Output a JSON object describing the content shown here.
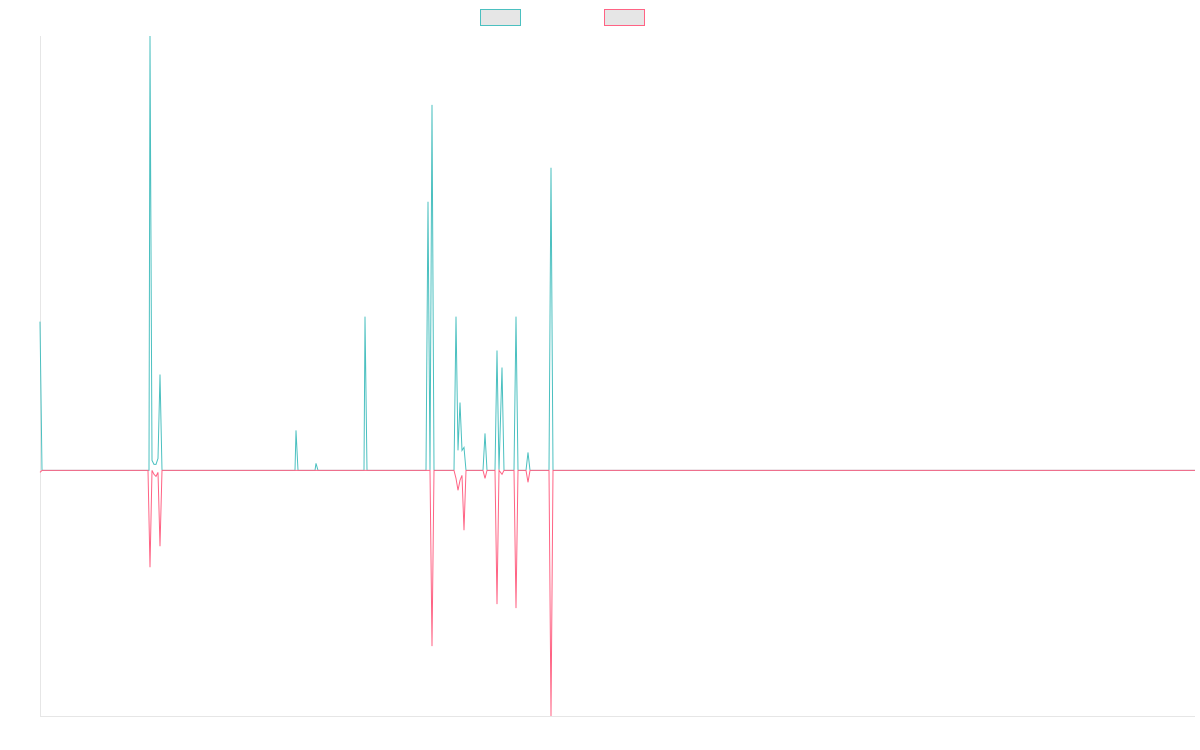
{
  "chart_data": {
    "type": "line",
    "title": "",
    "xlabel": "",
    "ylabel": "",
    "x": [
      0,
      1,
      2,
      3,
      4,
      5,
      6,
      7,
      8,
      9,
      10,
      11,
      12,
      13,
      14,
      15,
      16,
      17,
      18,
      19,
      20,
      21,
      22,
      23,
      24,
      25,
      26,
      27,
      28,
      29,
      30,
      31,
      32,
      33,
      34,
      35,
      36,
      37,
      38,
      39,
      40,
      41,
      42,
      43,
      44,
      45,
      46,
      47,
      48,
      49,
      50,
      51,
      52,
      53,
      54,
      55,
      56,
      57,
      58,
      59,
      60,
      61,
      62,
      63,
      64,
      65,
      66,
      67,
      68,
      69,
      70,
      71,
      72,
      73,
      74,
      75,
      76,
      77,
      78,
      79,
      80,
      81,
      82,
      83,
      84,
      85,
      86,
      87,
      88,
      89,
      90,
      91,
      92,
      93,
      94,
      95,
      96,
      97,
      98,
      99,
      100,
      101,
      102,
      103,
      104,
      105,
      106,
      107,
      108,
      109,
      110,
      111,
      112,
      113,
      114,
      115,
      116,
      117,
      118,
      119,
      120,
      121,
      122,
      123,
      124,
      125,
      126,
      127,
      128,
      129,
      130,
      131,
      132,
      133,
      134,
      135,
      136,
      137,
      138,
      139,
      140,
      141,
      142,
      143,
      144,
      145,
      146,
      147,
      148,
      149,
      150,
      151,
      152,
      153,
      154,
      155,
      156,
      157,
      158,
      159,
      160,
      161,
      162,
      163,
      164,
      165,
      166,
      167,
      168,
      169,
      170,
      171,
      172,
      173,
      174,
      175,
      176,
      177,
      178,
      179,
      180,
      181,
      182,
      183,
      184,
      185,
      186,
      187,
      188,
      189,
      190,
      191,
      192,
      193,
      194,
      195,
      196,
      197,
      198,
      199,
      200,
      201,
      202,
      203,
      204,
      205,
      206,
      207,
      208,
      209,
      210,
      211,
      212,
      213,
      214,
      215,
      216,
      217,
      218,
      219,
      220,
      221,
      222,
      223,
      224,
      225,
      226,
      227,
      228,
      229,
      230,
      231,
      232,
      233,
      234,
      235,
      236,
      237,
      238,
      239,
      240,
      241,
      242,
      243,
      244,
      245,
      246,
      247,
      248,
      249,
      250,
      251,
      252,
      253,
      254,
      255,
      256,
      257,
      258,
      259,
      260,
      261,
      262,
      263,
      264,
      265,
      266,
      267,
      268,
      269,
      270,
      271,
      272,
      273,
      274,
      275,
      276,
      277,
      278,
      279,
      280,
      281,
      282,
      283,
      284,
      285,
      286,
      287,
      288,
      289,
      290,
      291,
      292,
      293,
      294,
      295,
      296,
      297,
      298,
      299,
      300,
      301,
      302,
      303,
      304,
      305,
      306,
      307,
      308,
      309,
      310,
      311,
      312,
      313,
      314,
      315,
      316,
      317,
      318,
      319,
      320,
      321,
      322,
      323,
      324,
      325,
      326,
      327,
      328,
      329,
      330,
      331,
      332,
      333,
      334,
      335,
      336,
      337,
      338,
      339,
      340,
      341,
      342,
      343,
      344,
      345,
      346,
      347,
      348,
      349,
      350,
      351,
      352,
      353,
      354,
      355,
      356,
      357,
      358,
      359,
      360,
      361,
      362,
      363,
      364,
      365,
      366,
      367,
      368,
      369,
      370,
      371,
      372,
      373,
      374,
      375,
      376,
      377,
      378,
      379,
      380,
      381,
      382,
      383,
      384,
      385,
      386,
      387,
      388,
      389,
      390,
      391,
      392,
      393,
      394,
      395,
      396,
      397,
      398,
      399,
      400,
      401,
      402,
      403,
      404,
      405,
      406,
      407,
      408,
      409,
      410,
      411,
      412,
      413,
      414,
      415,
      416,
      417,
      418,
      419,
      420,
      421,
      422,
      423,
      424,
      425,
      426,
      427,
      428,
      429,
      430,
      431,
      432,
      433,
      434,
      435,
      436,
      437,
      438,
      439,
      440,
      441,
      442,
      443,
      444,
      445,
      446,
      447,
      448,
      449,
      450,
      451,
      452,
      453,
      454,
      455,
      456,
      457,
      458,
      459,
      460,
      461,
      462,
      463,
      464,
      465,
      466,
      467,
      468,
      469,
      470,
      471,
      472,
      473,
      474,
      475,
      476,
      477,
      478,
      479,
      480,
      481,
      482,
      483,
      484,
      485,
      486,
      487,
      488,
      489,
      490,
      491,
      492,
      493,
      494,
      495,
      496,
      497,
      498,
      499,
      500,
      501,
      502,
      503,
      504,
      505,
      506,
      507,
      508,
      509,
      510,
      511,
      512,
      513,
      514,
      515,
      516,
      517,
      518,
      519,
      520,
      521,
      522,
      523,
      524,
      525,
      526,
      527,
      528,
      529,
      530,
      531,
      532,
      533,
      534,
      535,
      536,
      537,
      538,
      539,
      540,
      541,
      542,
      543,
      544,
      545,
      546,
      547,
      548,
      549,
      550,
      551,
      552,
      553,
      554,
      555,
      556,
      557,
      558,
      559,
      560,
      561,
      562,
      563,
      564,
      565,
      566,
      567,
      568,
      569,
      570,
      571,
      572,
      573,
      574,
      575,
      576,
      577,
      578,
      579,
      580,
      581,
      582,
      583,
      584,
      585,
      586,
      587,
      588,
      589,
      590,
      591,
      592,
      593,
      594,
      595,
      596,
      597,
      598,
      599,
      600,
      601,
      602,
      603,
      604,
      605,
      606,
      607,
      608,
      609,
      610,
      611,
      612,
      613,
      614,
      615,
      616,
      617,
      618,
      619,
      620,
      621,
      622,
      623,
      624,
      625,
      626,
      627,
      628,
      629,
      630,
      631,
      632,
      633,
      634,
      635,
      636,
      637,
      638,
      639,
      640,
      641,
      642,
      643,
      644,
      645,
      646,
      647,
      648,
      649,
      650,
      651,
      652,
      653,
      654,
      655,
      656,
      657,
      658,
      659,
      660,
      661,
      662,
      663,
      664,
      665,
      666,
      667,
      668,
      669,
      670,
      671,
      672,
      673,
      674,
      675,
      676,
      677,
      678,
      679,
      680,
      681,
      682,
      683,
      684,
      685,
      686,
      687,
      688,
      689,
      690,
      691,
      692,
      693,
      694,
      695,
      696,
      697,
      698,
      699,
      700,
      701,
      702,
      703,
      704,
      705,
      706,
      707,
      708,
      709,
      710,
      711,
      712,
      713,
      714,
      715,
      716,
      717,
      718,
      719,
      720,
      721,
      722,
      723,
      724,
      725,
      726,
      727,
      728,
      729,
      730,
      731,
      732,
      733,
      734,
      735,
      736,
      737,
      738,
      739,
      740,
      741,
      742,
      743,
      744,
      745,
      746,
      747,
      748,
      749,
      750,
      751,
      752,
      753,
      754,
      755,
      756,
      757,
      758,
      759,
      760,
      761,
      762,
      763,
      764,
      765,
      766,
      767,
      768,
      769,
      770,
      771,
      772,
      773,
      774,
      775,
      776,
      777,
      778,
      779,
      780,
      781,
      782,
      783,
      784,
      785,
      786,
      787,
      788,
      789,
      790,
      791,
      792,
      793,
      794,
      795,
      796,
      797,
      798,
      799,
      800,
      801,
      802,
      803,
      804,
      805,
      806,
      807,
      808,
      809,
      810,
      811,
      812,
      813,
      814,
      815,
      816,
      817,
      818,
      819,
      820,
      821,
      822,
      823,
      824,
      825,
      826,
      827,
      828,
      829,
      830,
      831,
      832,
      833,
      834,
      835,
      836,
      837,
      838,
      839,
      840,
      841,
      842,
      843,
      844,
      845,
      846,
      847,
      848,
      849,
      850,
      851,
      852,
      853,
      854,
      855,
      856,
      857,
      858,
      859,
      860,
      861,
      862,
      863,
      864,
      865,
      866,
      867,
      868,
      869,
      870,
      871,
      872,
      873,
      874,
      875,
      876,
      877,
      878,
      879,
      880,
      881,
      882,
      883,
      884,
      885,
      886,
      887,
      888,
      889,
      890,
      891,
      892,
      893,
      894,
      895,
      896,
      897,
      898,
      899,
      900,
      901,
      902,
      903,
      904,
      905,
      906,
      907,
      908,
      909,
      910,
      911,
      912,
      913,
      914,
      915,
      916,
      917,
      918,
      919,
      920,
      921,
      922,
      923,
      924,
      925,
      926,
      927,
      928,
      929,
      930,
      931,
      932,
      933,
      934,
      935,
      936,
      937,
      938,
      939,
      940,
      941,
      942,
      943,
      944,
      945,
      946,
      947,
      948,
      949,
      950,
      951,
      952,
      953,
      954,
      955,
      956,
      957,
      958,
      959,
      960,
      961,
      962,
      963,
      964,
      965,
      966,
      967,
      968,
      969,
      970,
      971,
      972,
      973,
      974,
      975,
      976,
      977,
      978,
      979,
      980,
      981,
      982,
      983,
      984,
      985,
      986,
      987,
      988,
      989,
      990,
      991,
      992,
      993,
      994,
      995,
      996,
      997,
      998,
      999,
      1000,
      1001,
      1002,
      1003,
      1004,
      1005,
      1006,
      1007,
      1008,
      1009,
      1010,
      1011,
      1012,
      1013,
      1014,
      1015,
      1016,
      1017,
      1018,
      1019,
      1020,
      1021,
      1022,
      1023,
      1024,
      1025,
      1026,
      1027,
      1028,
      1029,
      1030,
      1031,
      1032,
      1033,
      1034,
      1035,
      1036,
      1037,
      1038,
      1039,
      1040,
      1041,
      1042,
      1043,
      1044,
      1045,
      1046,
      1047,
      1048,
      1049,
      1050,
      1051,
      1052,
      1053,
      1054,
      1055,
      1056,
      1057,
      1058,
      1059,
      1060,
      1061,
      1062,
      1063,
      1064,
      1065,
      1066,
      1067,
      1068,
      1069,
      1070,
      1071,
      1072,
      1073,
      1074,
      1075,
      1076,
      1077,
      1078,
      1079,
      1080,
      1081,
      1082,
      1083,
      1084,
      1085,
      1086,
      1087,
      1088,
      1089,
      1090,
      1091,
      1092,
      1093,
      1094,
      1095,
      1096,
      1097,
      1098,
      1099,
      1100,
      1101,
      1102,
      1103,
      1104,
      1105,
      1106,
      1107,
      1108,
      1109,
      1110,
      1111,
      1112,
      1113,
      1114,
      1115,
      1116,
      1117,
      1118,
      1119,
      1120,
      1121,
      1122,
      1123,
      1124,
      1125,
      1126,
      1127,
      1128,
      1129,
      1130,
      1131,
      1132,
      1133,
      1134,
      1135,
      1136,
      1137,
      1138,
      1139,
      1140,
      1141,
      1142,
      1143,
      1144,
      1145,
      1146,
      1147,
      1148,
      1149,
      1150,
      1151,
      1152,
      1153,
      1154,
      1155
    ],
    "series_points": [
      {
        "color": "#4bc0c0",
        "points": [
          [
            0,
            149
          ],
          [
            2,
            0
          ],
          [
            109,
            0
          ],
          [
            110,
            435
          ],
          [
            112,
            10
          ],
          [
            114,
            6
          ],
          [
            116,
            6
          ],
          [
            118,
            12
          ],
          [
            120,
            96
          ],
          [
            122,
            0
          ],
          [
            255,
            0
          ],
          [
            256,
            40
          ],
          [
            258,
            0
          ],
          [
            275,
            0
          ],
          [
            276,
            7
          ],
          [
            278,
            0
          ],
          [
            324,
            0
          ],
          [
            325,
            154
          ],
          [
            327,
            0
          ],
          [
            386,
            0
          ],
          [
            388,
            269
          ],
          [
            390,
            0
          ],
          [
            392,
            366
          ],
          [
            394,
            0
          ],
          [
            414,
            0
          ],
          [
            416,
            154
          ],
          [
            418,
            20
          ],
          [
            420,
            68
          ],
          [
            422,
            20
          ],
          [
            424,
            23
          ],
          [
            426,
            0
          ],
          [
            443,
            0
          ],
          [
            445,
            37
          ],
          [
            447,
            0
          ],
          [
            455,
            0
          ],
          [
            457,
            120
          ],
          [
            459,
            0
          ],
          [
            462,
            103
          ],
          [
            464,
            0
          ],
          [
            474,
            0
          ],
          [
            476,
            154
          ],
          [
            478,
            0
          ],
          [
            486,
            0
          ],
          [
            488,
            18
          ],
          [
            490,
            0
          ],
          [
            509,
            0
          ],
          [
            511,
            303
          ],
          [
            513,
            0
          ],
          [
            1155,
            0
          ]
        ]
      },
      {
        "color": "#ff6384",
        "points": [
          [
            0,
            -2
          ],
          [
            2,
            0
          ],
          [
            108,
            0
          ],
          [
            110,
            -97
          ],
          [
            112,
            0
          ],
          [
            114,
            -4
          ],
          [
            116,
            -6
          ],
          [
            118,
            -2
          ],
          [
            120,
            -76
          ],
          [
            122,
            0
          ],
          [
            386,
            0
          ],
          [
            388,
            0
          ],
          [
            390,
            0
          ],
          [
            392,
            -176
          ],
          [
            394,
            0
          ],
          [
            414,
            0
          ],
          [
            416,
            -8
          ],
          [
            418,
            -20
          ],
          [
            420,
            -10
          ],
          [
            422,
            -5
          ],
          [
            424,
            -60
          ],
          [
            426,
            0
          ],
          [
            443,
            0
          ],
          [
            445,
            -8
          ],
          [
            447,
            0
          ],
          [
            455,
            0
          ],
          [
            457,
            -134
          ],
          [
            459,
            0
          ],
          [
            462,
            -4
          ],
          [
            464,
            0
          ],
          [
            474,
            0
          ],
          [
            476,
            -138
          ],
          [
            478,
            0
          ],
          [
            486,
            0
          ],
          [
            488,
            -12
          ],
          [
            490,
            0
          ],
          [
            509,
            0
          ],
          [
            511,
            -246
          ],
          [
            513,
            0
          ],
          [
            1155,
            0
          ]
        ]
      }
    ],
    "xlim": [
      0,
      1155
    ],
    "ylim": [
      -246,
      435
    ],
    "legend": {
      "position": "top-center",
      "items": [
        {
          "label": "",
          "stroke": "#4bc0c0",
          "fill": "#e6e6e6"
        },
        {
          "label": "",
          "stroke": "#ff6384",
          "fill": "#e6e6e6"
        }
      ]
    },
    "grid": false,
    "axis_color": "#e6e6e6"
  }
}
